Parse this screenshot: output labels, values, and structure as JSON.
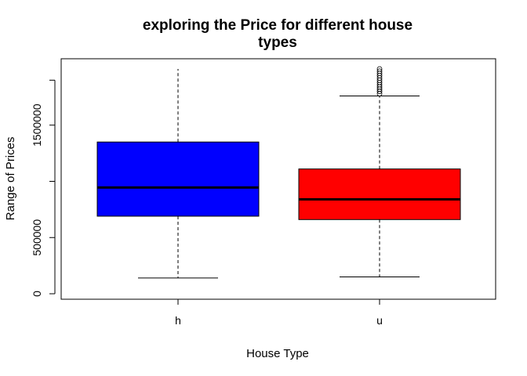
{
  "chart_data": {
    "type": "boxplot",
    "title_lines": [
      "exploring the Price for different house",
      "types"
    ],
    "xlabel": "House Type",
    "ylabel": "Range of Prices",
    "categories": [
      "h",
      "u"
    ],
    "yticks": [
      0,
      500000,
      1500000
    ],
    "ytick_labels": [
      "0",
      "500000",
      "1500000"
    ],
    "ylim": [
      0,
      2000000
    ],
    "grid": false,
    "boxes": [
      {
        "category": "h",
        "color": "#0000ff",
        "whisker_low": 140000,
        "q1": 690000,
        "median": 945000,
        "q3": 1350000,
        "whisker_high": 2000000,
        "outliers": []
      },
      {
        "category": "u",
        "color": "#ff0000",
        "whisker_low": 150000,
        "q1": 660000,
        "median": 840000,
        "q3": 1110000,
        "whisker_high": 1760000,
        "outliers": [
          1780000,
          1800000,
          1820000,
          1840000,
          1860000,
          1880000,
          1900000,
          1920000,
          1940000,
          1960000,
          1980000,
          2000000
        ]
      }
    ]
  }
}
